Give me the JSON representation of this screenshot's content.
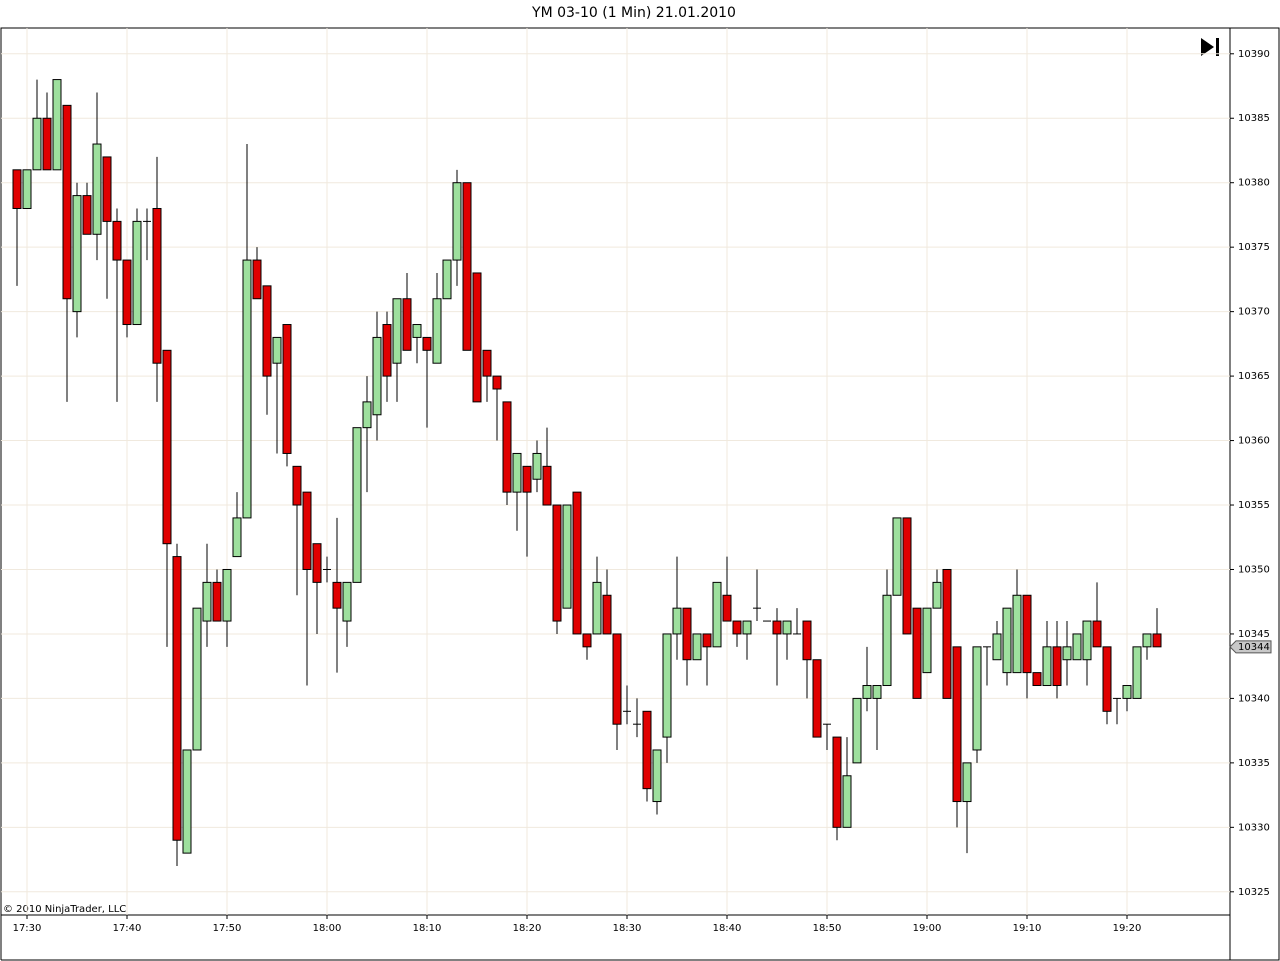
{
  "chart_data": {
    "type": "candlestick",
    "title": "YM 03-10 (1 Min)  21.01.2010",
    "copyright": "© 2010 NinjaTrader, LLC",
    "categories": [
      null,
      "17:30",
      null,
      null,
      null,
      null,
      null,
      null,
      null,
      null,
      null,
      "17:40",
      null,
      null,
      null,
      null,
      null,
      null,
      null,
      null,
      null,
      "17:50",
      null,
      null,
      null,
      null,
      null,
      null,
      null,
      null,
      null,
      "18:00",
      null,
      null,
      null,
      null,
      null,
      null,
      null,
      null,
      null,
      "18:10",
      null,
      null,
      null,
      null,
      null,
      null,
      null,
      null,
      null,
      "18:20",
      null,
      null,
      null,
      null,
      null,
      null,
      null,
      null,
      null,
      "18:30",
      null,
      null,
      null,
      null,
      null,
      null,
      null,
      null,
      null,
      "18:40",
      null,
      null,
      null,
      null,
      null,
      null,
      null,
      null,
      null,
      "18:50",
      null,
      null,
      null,
      null,
      null,
      null,
      null,
      null,
      null,
      "19:00",
      null,
      null,
      null,
      null,
      null,
      null,
      null,
      null,
      null,
      "19:10",
      null,
      null,
      null,
      null,
      null,
      null,
      null,
      null,
      null,
      "19:20",
      null,
      null,
      null
    ],
    "open": [
      10381,
      10378,
      10381,
      10385,
      10381,
      10386,
      10370,
      10379,
      10376,
      10382,
      10377,
      10374,
      10369,
      10377,
      10378,
      10367,
      10351,
      10328,
      10336,
      10346,
      10349,
      10346,
      10351,
      10354,
      10374,
      10372,
      10366,
      10369,
      10358,
      10356,
      10352,
      10350,
      10349,
      10346,
      10349,
      10361,
      10362,
      10369,
      10366,
      10371,
      10368,
      10368,
      10366,
      10371,
      10374,
      10380,
      10373,
      10367,
      10365,
      10363,
      10356,
      10358,
      10357,
      10358,
      10355,
      10347,
      10356,
      10345,
      10345,
      10348,
      10345,
      10339,
      10338,
      10339,
      10332,
      10337,
      10345,
      10347,
      10343,
      10345,
      10344,
      10348,
      10346,
      10345,
      10347,
      10346,
      10346,
      10345,
      10345,
      10346,
      10343,
      10338,
      10337,
      10330,
      10335,
      10340,
      10340,
      10341,
      10348,
      10354,
      10347,
      10342,
      10347,
      10350,
      10344,
      10332,
      10336,
      10344,
      10343,
      10342,
      10342,
      10348,
      10342,
      10341,
      10344,
      10343,
      10343,
      10343,
      10346,
      10344,
      10340,
      10340,
      10340,
      10344,
      10345
    ],
    "high": [
      10381,
      10381,
      10388,
      10387,
      10388,
      10386,
      10380,
      10380,
      10387,
      10382,
      10378,
      10374,
      10378,
      10378,
      10382,
      10367,
      10352,
      10336,
      10347,
      10352,
      10350,
      10350,
      10356,
      10383,
      10375,
      10372,
      10368,
      10369,
      10358,
      10356,
      10352,
      10351,
      10354,
      10349,
      10361,
      10365,
      10370,
      10370,
      10371,
      10373,
      10369,
      10368,
      10373,
      10374,
      10381,
      10380,
      10373,
      10367,
      10365,
      10363,
      10359,
      10358,
      10360,
      10361,
      10355,
      10355,
      10356,
      10345,
      10351,
      10350,
      10345,
      10341,
      10340,
      10339,
      10336,
      10345,
      10351,
      10347,
      10345,
      10345,
      10349,
      10351,
      10346,
      10346,
      10350,
      10346,
      10347,
      10346,
      10347,
      10346,
      10343,
      10338,
      10337,
      10337,
      10340,
      10344,
      10341,
      10350,
      10354,
      10354,
      10347,
      10347,
      10350,
      10350,
      10344,
      10335,
      10344,
      10344,
      10346,
      10347,
      10350,
      10348,
      10342,
      10346,
      10346,
      10346,
      10345,
      10346,
      10349,
      10344,
      10340,
      10341,
      10344,
      10345,
      10347
    ],
    "low": [
      10372,
      10378,
      10381,
      10381,
      10381,
      10363,
      10368,
      10376,
      10374,
      10371,
      10363,
      10368,
      10369,
      10374,
      10363,
      10344,
      10327,
      10328,
      10336,
      10344,
      10346,
      10344,
      10351,
      10354,
      10371,
      10362,
      10359,
      10358,
      10348,
      10341,
      10345,
      10349,
      10342,
      10344,
      10349,
      10356,
      10360,
      10363,
      10363,
      10367,
      10366,
      10361,
      10366,
      10371,
      10372,
      10367,
      10363,
      10363,
      10360,
      10355,
      10353,
      10351,
      10356,
      10355,
      10345,
      10347,
      10345,
      10343,
      10345,
      10345,
      10336,
      10338,
      10337,
      10332,
      10331,
      10335,
      10343,
      10341,
      10343,
      10341,
      10344,
      10346,
      10344,
      10343,
      10346,
      10346,
      10341,
      10343,
      10345,
      10340,
      10337,
      10336,
      10329,
      10330,
      10335,
      10339,
      10336,
      10341,
      10348,
      10345,
      10340,
      10342,
      10347,
      10340,
      10330,
      10328,
      10335,
      10341,
      10343,
      10341,
      10342,
      10340,
      10341,
      10341,
      10340,
      10341,
      10343,
      10341,
      10344,
      10338,
      10338,
      10339,
      10340,
      10343,
      10344
    ],
    "close": [
      10378,
      10381,
      10385,
      10381,
      10388,
      10371,
      10379,
      10376,
      10383,
      10377,
      10374,
      10369,
      10377,
      10377,
      10366,
      10352,
      10329,
      10336,
      10347,
      10349,
      10346,
      10350,
      10354,
      10374,
      10371,
      10365,
      10368,
      10359,
      10355,
      10350,
      10349,
      10350,
      10347,
      10349,
      10361,
      10363,
      10368,
      10365,
      10371,
      10367,
      10369,
      10367,
      10371,
      10374,
      10380,
      10367,
      10363,
      10365,
      10364,
      10356,
      10359,
      10356,
      10359,
      10355,
      10346,
      10355,
      10345,
      10344,
      10349,
      10345,
      10338,
      10339,
      10338,
      10333,
      10336,
      10345,
      10347,
      10343,
      10345,
      10344,
      10349,
      10346,
      10345,
      10346,
      10347,
      10346,
      10345,
      10346,
      10345,
      10343,
      10337,
      10338,
      10330,
      10334,
      10340,
      10341,
      10341,
      10348,
      10354,
      10345,
      10340,
      10347,
      10349,
      10340,
      10332,
      10335,
      10344,
      10344,
      10345,
      10347,
      10348,
      10342,
      10341,
      10344,
      10341,
      10344,
      10345,
      10346,
      10344,
      10339,
      10340,
      10341,
      10344,
      10345,
      10344
    ],
    "up_color": "#9ee09e",
    "down_color": "#e00000",
    "last_price": 10344,
    "ylim": [
      10323.2,
      10392
    ],
    "yticks": [
      10325,
      10330,
      10335,
      10340,
      10345,
      10350,
      10355,
      10360,
      10365,
      10370,
      10375,
      10380,
      10385,
      10390
    ],
    "grid": true
  }
}
